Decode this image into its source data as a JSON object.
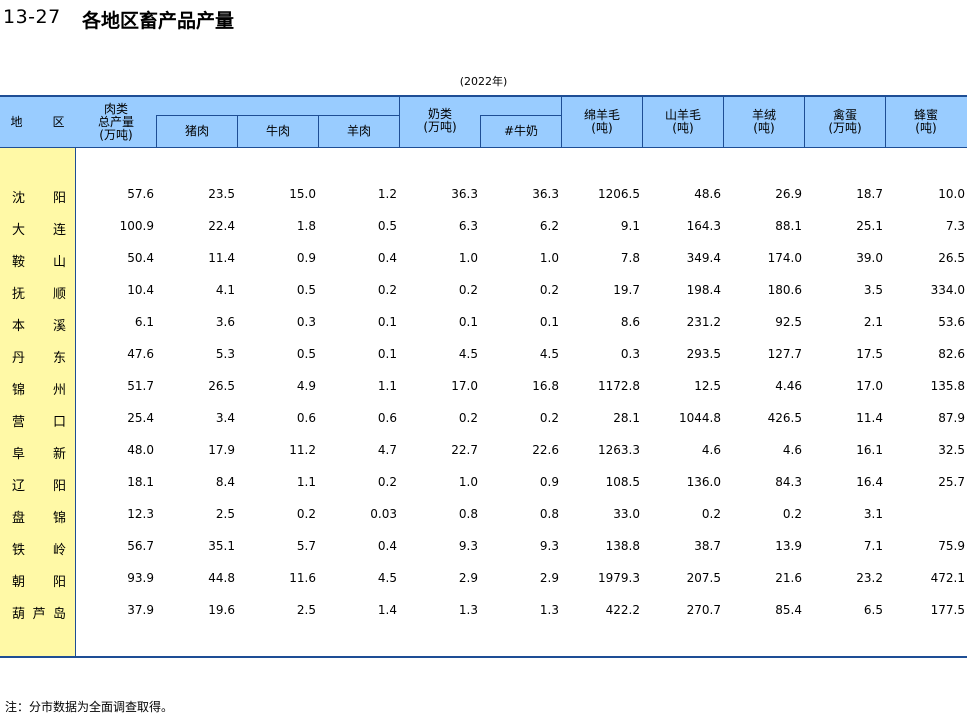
{
  "title": {
    "code": "13-27",
    "text": "各地区畜产品产量"
  },
  "year_note": "(2022年)",
  "headers": {
    "region": [
      "地",
      "区"
    ],
    "meat_total": "肉类\n总产量\n(万吨)",
    "pork": "猪肉",
    "beef": "牛肉",
    "mutton": "羊肉",
    "milk": "奶类\n(万吨)",
    "cow_milk": "#牛奶",
    "wool": "绵羊毛\n(吨)",
    "goat_hair": "山羊毛\n(吨)",
    "cashmere": "羊绒\n(吨)",
    "eggs": "禽蛋\n(万吨)",
    "honey": "蜂蜜\n(吨)"
  },
  "rows": [
    {
      "region": [
        "沈",
        "阳"
      ],
      "values": [
        "57.6",
        "23.5",
        "15.0",
        "1.2",
        "36.3",
        "36.3",
        "1206.5",
        "48.6",
        "26.9",
        "18.7",
        "10.0"
      ]
    },
    {
      "region": [
        "大",
        "连"
      ],
      "values": [
        "100.9",
        "22.4",
        "1.8",
        "0.5",
        "6.3",
        "6.2",
        "9.1",
        "164.3",
        "88.1",
        "25.1",
        "7.3"
      ]
    },
    {
      "region": [
        "鞍",
        "山"
      ],
      "values": [
        "50.4",
        "11.4",
        "0.9",
        "0.4",
        "1.0",
        "1.0",
        "7.8",
        "349.4",
        "174.0",
        "39.0",
        "26.5"
      ]
    },
    {
      "region": [
        "抚",
        "顺"
      ],
      "values": [
        "10.4",
        "4.1",
        "0.5",
        "0.2",
        "0.2",
        "0.2",
        "19.7",
        "198.4",
        "180.6",
        "3.5",
        "334.0"
      ]
    },
    {
      "region": [
        "本",
        "溪"
      ],
      "values": [
        "6.1",
        "3.6",
        "0.3",
        "0.1",
        "0.1",
        "0.1",
        "8.6",
        "231.2",
        "92.5",
        "2.1",
        "53.6"
      ]
    },
    {
      "region": [
        "丹",
        "东"
      ],
      "values": [
        "47.6",
        "5.3",
        "0.5",
        "0.1",
        "4.5",
        "4.5",
        "0.3",
        "293.5",
        "127.7",
        "17.5",
        "82.6"
      ]
    },
    {
      "region": [
        "锦",
        "州"
      ],
      "values": [
        "51.7",
        "26.5",
        "4.9",
        "1.1",
        "17.0",
        "16.8",
        "1172.8",
        "12.5",
        "4.46",
        "17.0",
        "135.8"
      ]
    },
    {
      "region": [
        "营",
        "口"
      ],
      "values": [
        "25.4",
        "3.4",
        "0.6",
        "0.6",
        "0.2",
        "0.2",
        "28.1",
        "1044.8",
        "426.5",
        "11.4",
        "87.9"
      ]
    },
    {
      "region": [
        "阜",
        "新"
      ],
      "values": [
        "48.0",
        "17.9",
        "11.2",
        "4.7",
        "22.7",
        "22.6",
        "1263.3",
        "4.6",
        "4.6",
        "16.1",
        "32.5"
      ]
    },
    {
      "region": [
        "辽",
        "阳"
      ],
      "values": [
        "18.1",
        "8.4",
        "1.1",
        "0.2",
        "1.0",
        "0.9",
        "108.5",
        "136.0",
        "84.3",
        "16.4",
        "25.7"
      ]
    },
    {
      "region": [
        "盘",
        "锦"
      ],
      "values": [
        "12.3",
        "2.5",
        "0.2",
        "0.03",
        "0.8",
        "0.8",
        "33.0",
        "0.2",
        "0.2",
        "3.1",
        ""
      ]
    },
    {
      "region": [
        "铁",
        "岭"
      ],
      "values": [
        "56.7",
        "35.1",
        "5.7",
        "0.4",
        "9.3",
        "9.3",
        "138.8",
        "38.7",
        "13.9",
        "7.1",
        "75.9"
      ]
    },
    {
      "region": [
        "朝",
        "阳"
      ],
      "values": [
        "93.9",
        "44.8",
        "11.6",
        "4.5",
        "2.9",
        "2.9",
        "1979.3",
        "207.5",
        "21.6",
        "23.2",
        "472.1"
      ]
    },
    {
      "region": [
        "葫",
        "芦",
        "岛"
      ],
      "values": [
        "37.9",
        "19.6",
        "2.5",
        "1.4",
        "1.3",
        "1.3",
        "422.2",
        "270.7",
        "85.4",
        "6.5",
        "177.5"
      ]
    }
  ],
  "footnote": "注：分市数据为全面调查取得。",
  "colors": {
    "header_bg": "#99ccff",
    "region_bg": "#fff9a6",
    "rule": "#1e4e95"
  }
}
